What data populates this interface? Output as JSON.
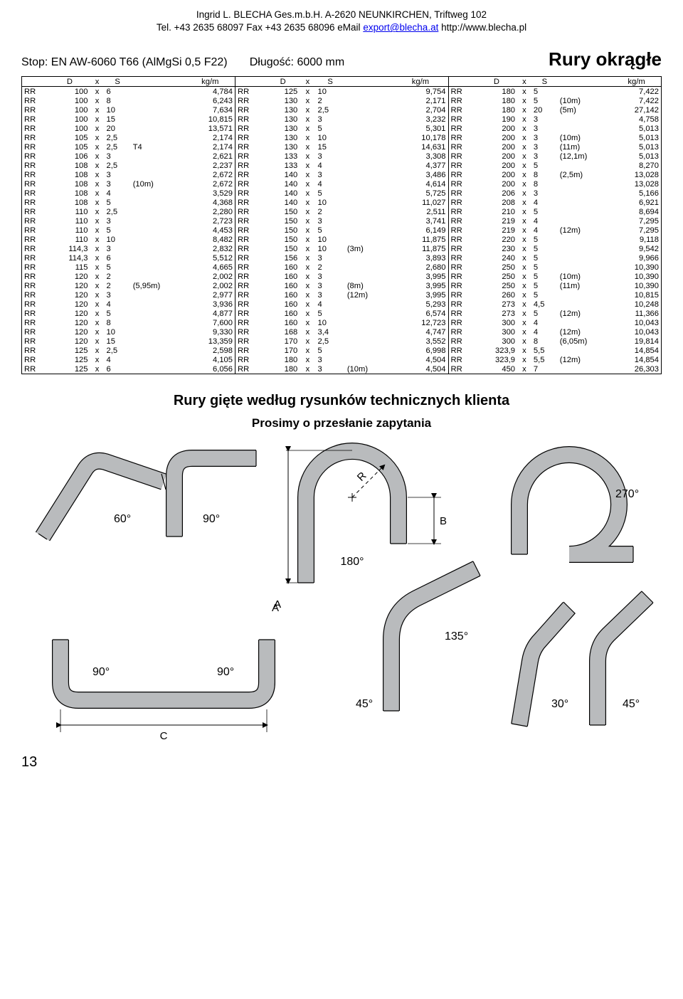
{
  "header": {
    "line1": "Ingrid L. BLECHA Ges.m.b.H.  A-2620 NEUNKIRCHEN, Triftweg 102",
    "line2_pre": "Tel. +43 2635 68097  Fax +43 2635 68096  eMail  ",
    "email": "export@blecha.at",
    "line2_post": "   http://www.blecha.pl"
  },
  "spec": {
    "left1": "Stop: EN AW-6060 T66 (AlMgSi 0,5 F22)",
    "left2": "Długość: 6000 mm",
    "title": "Rury okrągłe"
  },
  "columns": [
    "D",
    "x",
    "S",
    "",
    "kg/m"
  ],
  "table1": [
    [
      "RR",
      "100",
      "x",
      "6",
      "",
      "4,784"
    ],
    [
      "RR",
      "100",
      "x",
      "8",
      "",
      "6,243"
    ],
    [
      "RR",
      "100",
      "x",
      "10",
      "",
      "7,634"
    ],
    [
      "RR",
      "100",
      "x",
      "15",
      "",
      "10,815"
    ],
    [
      "RR",
      "100",
      "x",
      "20",
      "",
      "13,571"
    ],
    [
      "RR",
      "105",
      "x",
      "2,5",
      "",
      "2,174"
    ],
    [
      "RR",
      "105",
      "x",
      "2,5",
      "T4",
      "2,174"
    ],
    [
      "RR",
      "106",
      "x",
      "3",
      "",
      "2,621"
    ],
    [
      "RR",
      "108",
      "x",
      "2,5",
      "",
      "2,237"
    ],
    [
      "RR",
      "108",
      "x",
      "3",
      "",
      "2,672"
    ],
    [
      "RR",
      "108",
      "x",
      "3",
      "(10m)",
      "2,672"
    ],
    [
      "RR",
      "108",
      "x",
      "4",
      "",
      "3,529"
    ],
    [
      "RR",
      "108",
      "x",
      "5",
      "",
      "4,368"
    ],
    [
      "RR",
      "110",
      "x",
      "2,5",
      "",
      "2,280"
    ],
    [
      "RR",
      "110",
      "x",
      "3",
      "",
      "2,723"
    ],
    [
      "RR",
      "110",
      "x",
      "5",
      "",
      "4,453"
    ],
    [
      "RR",
      "110",
      "x",
      "10",
      "",
      "8,482"
    ],
    [
      "RR",
      "114,3",
      "x",
      "3",
      "",
      "2,832"
    ],
    [
      "RR",
      "114,3",
      "x",
      "6",
      "",
      "5,512"
    ],
    [
      "RR",
      "115",
      "x",
      "5",
      "",
      "4,665"
    ],
    [
      "RR",
      "120",
      "x",
      "2",
      "",
      "2,002"
    ],
    [
      "RR",
      "120",
      "x",
      "2",
      "(5,95m)",
      "2,002"
    ],
    [
      "RR",
      "120",
      "x",
      "3",
      "",
      "2,977"
    ],
    [
      "RR",
      "120",
      "x",
      "4",
      "",
      "3,936"
    ],
    [
      "RR",
      "120",
      "x",
      "5",
      "",
      "4,877"
    ],
    [
      "RR",
      "120",
      "x",
      "8",
      "",
      "7,600"
    ],
    [
      "RR",
      "120",
      "x",
      "10",
      "",
      "9,330"
    ],
    [
      "RR",
      "120",
      "x",
      "15",
      "",
      "13,359"
    ],
    [
      "RR",
      "125",
      "x",
      "2,5",
      "",
      "2,598"
    ],
    [
      "RR",
      "125",
      "x",
      "4",
      "",
      "4,105"
    ],
    [
      "RR",
      "125",
      "x",
      "6",
      "",
      "6,056"
    ]
  ],
  "table2": [
    [
      "RR",
      "125",
      "x",
      "10",
      "",
      "9,754"
    ],
    [
      "RR",
      "130",
      "x",
      "2",
      "",
      "2,171"
    ],
    [
      "RR",
      "130",
      "x",
      "2,5",
      "",
      "2,704"
    ],
    [
      "RR",
      "130",
      "x",
      "3",
      "",
      "3,232"
    ],
    [
      "RR",
      "130",
      "x",
      "5",
      "",
      "5,301"
    ],
    [
      "RR",
      "130",
      "x",
      "10",
      "",
      "10,178"
    ],
    [
      "RR",
      "130",
      "x",
      "15",
      "",
      "14,631"
    ],
    [
      "RR",
      "133",
      "x",
      "3",
      "",
      "3,308"
    ],
    [
      "RR",
      "133",
      "x",
      "4",
      "",
      "4,377"
    ],
    [
      "RR",
      "140",
      "x",
      "3",
      "",
      "3,486"
    ],
    [
      "RR",
      "140",
      "x",
      "4",
      "",
      "4,614"
    ],
    [
      "RR",
      "140",
      "x",
      "5",
      "",
      "5,725"
    ],
    [
      "RR",
      "140",
      "x",
      "10",
      "",
      "11,027"
    ],
    [
      "RR",
      "150",
      "x",
      "2",
      "",
      "2,511"
    ],
    [
      "RR",
      "150",
      "x",
      "3",
      "",
      "3,741"
    ],
    [
      "RR",
      "150",
      "x",
      "5",
      "",
      "6,149"
    ],
    [
      "RR",
      "150",
      "x",
      "10",
      "",
      "11,875"
    ],
    [
      "RR",
      "150",
      "x",
      "10",
      "(3m)",
      "11,875"
    ],
    [
      "RR",
      "156",
      "x",
      "3",
      "",
      "3,893"
    ],
    [
      "RR",
      "160",
      "x",
      "2",
      "",
      "2,680"
    ],
    [
      "RR",
      "160",
      "x",
      "3",
      "",
      "3,995"
    ],
    [
      "RR",
      "160",
      "x",
      "3",
      "(8m)",
      "3,995"
    ],
    [
      "RR",
      "160",
      "x",
      "3",
      "(12m)",
      "3,995"
    ],
    [
      "RR",
      "160",
      "x",
      "4",
      "",
      "5,293"
    ],
    [
      "RR",
      "160",
      "x",
      "5",
      "",
      "6,574"
    ],
    [
      "RR",
      "160",
      "x",
      "10",
      "",
      "12,723"
    ],
    [
      "RR",
      "168",
      "x",
      "3,4",
      "",
      "4,747"
    ],
    [
      "RR",
      "170",
      "x",
      "2,5",
      "",
      "3,552"
    ],
    [
      "RR",
      "170",
      "x",
      "5",
      "",
      "6,998"
    ],
    [
      "RR",
      "180",
      "x",
      "3",
      "",
      "4,504"
    ],
    [
      "RR",
      "180",
      "x",
      "3",
      "(10m)",
      "4,504"
    ]
  ],
  "table3": [
    [
      "RR",
      "180",
      "x",
      "5",
      "",
      "7,422"
    ],
    [
      "RR",
      "180",
      "x",
      "5",
      "(10m)",
      "7,422"
    ],
    [
      "RR",
      "180",
      "x",
      "20",
      "(5m)",
      "27,142"
    ],
    [
      "RR",
      "190",
      "x",
      "3",
      "",
      "4,758"
    ],
    [
      "RR",
      "200",
      "x",
      "3",
      "",
      "5,013"
    ],
    [
      "RR",
      "200",
      "x",
      "3",
      "(10m)",
      "5,013"
    ],
    [
      "RR",
      "200",
      "x",
      "3",
      "(11m)",
      "5,013"
    ],
    [
      "RR",
      "200",
      "x",
      "3",
      "(12,1m)",
      "5,013"
    ],
    [
      "RR",
      "200",
      "x",
      "5",
      "",
      "8,270"
    ],
    [
      "RR",
      "200",
      "x",
      "8",
      "(2,5m)",
      "13,028"
    ],
    [
      "RR",
      "200",
      "x",
      "8",
      "",
      "13,028"
    ],
    [
      "RR",
      "206",
      "x",
      "3",
      "",
      "5,166"
    ],
    [
      "RR",
      "208",
      "x",
      "4",
      "",
      "6,921"
    ],
    [
      "RR",
      "210",
      "x",
      "5",
      "",
      "8,694"
    ],
    [
      "RR",
      "219",
      "x",
      "4",
      "",
      "7,295"
    ],
    [
      "RR",
      "219",
      "x",
      "4",
      "(12m)",
      "7,295"
    ],
    [
      "RR",
      "220",
      "x",
      "5",
      "",
      "9,118"
    ],
    [
      "RR",
      "230",
      "x",
      "5",
      "",
      "9,542"
    ],
    [
      "RR",
      "240",
      "x",
      "5",
      "",
      "9,966"
    ],
    [
      "RR",
      "250",
      "x",
      "5",
      "",
      "10,390"
    ],
    [
      "RR",
      "250",
      "x",
      "5",
      "(10m)",
      "10,390"
    ],
    [
      "RR",
      "250",
      "x",
      "5",
      "(11m)",
      "10,390"
    ],
    [
      "RR",
      "260",
      "x",
      "5",
      "",
      "10,815"
    ],
    [
      "RR",
      "273",
      "x",
      "4,5",
      "",
      "10,248"
    ],
    [
      "RR",
      "273",
      "x",
      "5",
      "(12m)",
      "11,366"
    ],
    [
      "RR",
      "300",
      "x",
      "4",
      "",
      "10,043"
    ],
    [
      "RR",
      "300",
      "x",
      "4",
      "(12m)",
      "10,043"
    ],
    [
      "RR",
      "300",
      "x",
      "8",
      "(6,05m)",
      "19,814"
    ],
    [
      "RR",
      "323,9",
      "x",
      "5,5",
      "",
      "14,854"
    ],
    [
      "RR",
      "323,9",
      "x",
      "5,5",
      "(12m)",
      "14,854"
    ],
    [
      "RR",
      "450",
      "x",
      "7",
      "",
      "26,303"
    ]
  ],
  "section": {
    "title": "Rury gięte według rysunków technicznych klienta",
    "sub": "Prosimy o przesłanie zapytania"
  },
  "diagram": {
    "pipe_fill": "#b9bbbd",
    "pipe_stroke": "#000000",
    "pipe_stroke_width": 1.2,
    "pipe_thickness": 22,
    "labels": {
      "a60": "60°",
      "a90": "90°",
      "a180": "180°",
      "a270": "270°",
      "a135": "135°",
      "a45": "45°",
      "a30": "30°",
      "dimA": "A",
      "dimB": "B",
      "dimC": "C",
      "dimR": "R"
    }
  },
  "page_number": "13"
}
